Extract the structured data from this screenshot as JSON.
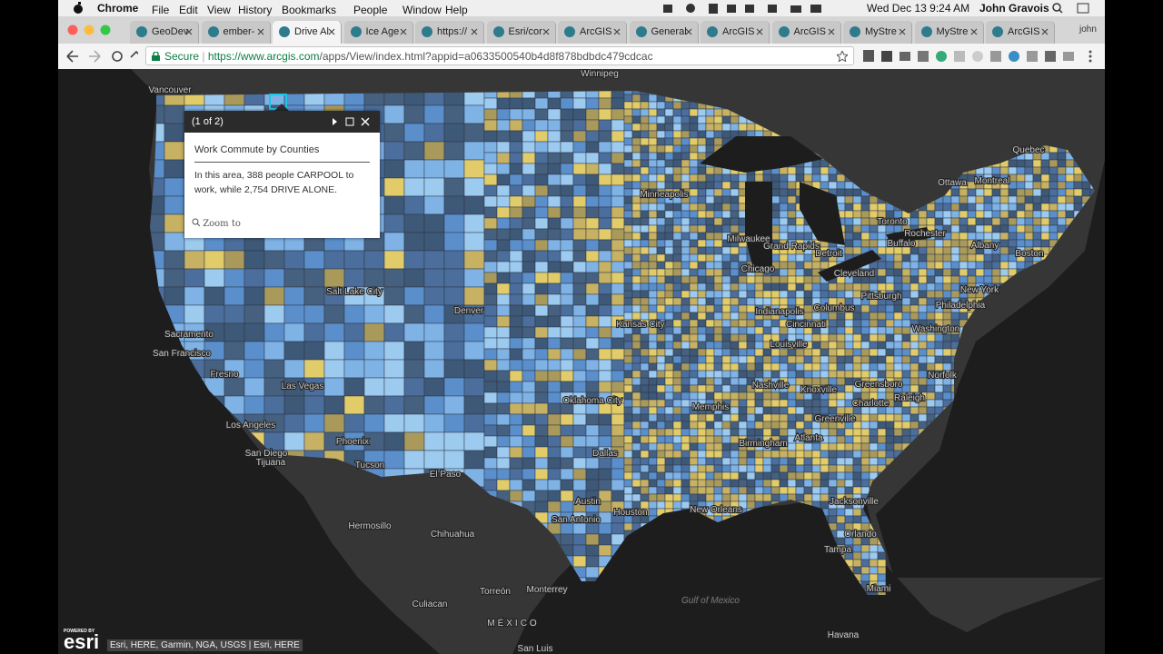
{
  "menu_bar": {
    "app": "Chrome",
    "items": [
      "File",
      "Edit",
      "View",
      "History",
      "Bookmarks",
      "People",
      "Window",
      "Help"
    ],
    "clock": "Wed Dec 13  9:24 AM",
    "user": "John Gravois"
  },
  "tabs": [
    "GeoDev",
    "ember-",
    "Drive Al",
    "Ice Age",
    "https://",
    "Esri/cor",
    "ArcGIS",
    "General",
    "ArcGIS",
    "ArcGIS",
    "MyStre",
    "MyStre",
    "ArcGIS"
  ],
  "profile": "john",
  "address_bar": {
    "secure": "Secure",
    "url_host": "https://www.arcgis.com",
    "url_path": "/apps/View/index.html?appid=a0633500540b4d8f878bdbdc479cdcac"
  },
  "popup": {
    "pager": "(1 of 2)",
    "title": "Work Commute by Counties",
    "body": [
      "In this area,",
      "388",
      "people CARPOOL to work, while",
      "2,754",
      "DRIVE ALONE."
    ],
    "zoom": "Zoom to"
  },
  "map_labels": [
    "Winnipeg",
    "Vancouver",
    "Quebec",
    "Ottawa",
    "Montreal",
    "Toronto",
    "Minneapolis",
    "Milwaukee",
    "Chicago",
    "Detroit",
    "Cleveland",
    "Pittsburgh",
    "Albany",
    "Boston",
    "New York",
    "Philadelphia",
    "Washington",
    "Norfolk",
    "Indianapolis",
    "Columbus",
    "Cincinnati",
    "Louisville",
    "Kansas City",
    "Denver",
    "Salt Lake City",
    "Sacramento",
    "San Francisco",
    "Fresno",
    "Las Vegas",
    "Los Angeles",
    "San Diego",
    "Tijuana",
    "Phoenix",
    "Tucson",
    "El Paso",
    "Oklahoma City",
    "Dallas",
    "Memphis",
    "Nashville",
    "Knoxville",
    "Greensboro",
    "Raleigh",
    "Charlotte",
    "Atlanta",
    "Birmingham",
    "Austin",
    "San Antonio",
    "Houston",
    "New Orleans",
    "Jacksonville",
    "Orlando",
    "Tampa",
    "Miami",
    "Hermosillo",
    "Chihuahua",
    "Monterrey",
    "Torreón",
    "Culiacan",
    "MÉXICO",
    "Havana",
    "Gulf of Mexico",
    "Buffalo",
    "Rochester",
    "Grand Rapids",
    "Greenville",
    "San Luis"
  ],
  "attribution": {
    "powered_by": "POWERED BY",
    "logo": "esri",
    "credits": "Esri, HERE, Garmin, NGA, USGS | Esri, HERE"
  }
}
